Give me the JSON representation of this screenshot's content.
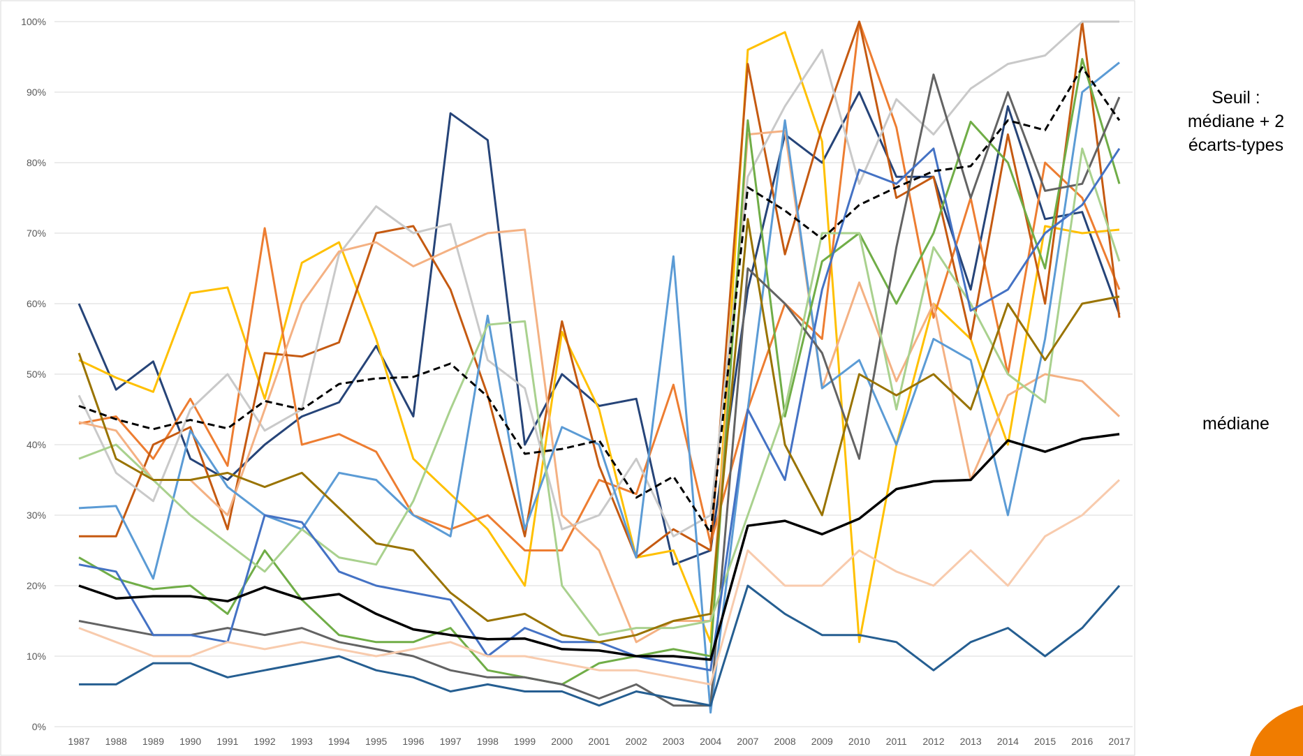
{
  "chart_data": {
    "type": "line",
    "categories": [
      "1987",
      "1988",
      "1989",
      "1990",
      "1991",
      "1992",
      "1993",
      "1994",
      "1995",
      "1996",
      "1997",
      "1998",
      "1999",
      "2000",
      "2001",
      "2002",
      "2003",
      "2004",
      "2007",
      "2008",
      "2009",
      "2010",
      "2011",
      "2012",
      "2013",
      "2014",
      "2015",
      "2016",
      "2017"
    ],
    "ylim": [
      0,
      100
    ],
    "yticks": [
      {
        "value": 0,
        "label": "0%"
      },
      {
        "value": 10,
        "label": "10%"
      },
      {
        "value": 20,
        "label": "20%"
      },
      {
        "value": 30,
        "label": "30%"
      },
      {
        "value": 40,
        "label": "40%"
      },
      {
        "value": 50,
        "label": "50%"
      },
      {
        "value": 60,
        "label": "60%"
      },
      {
        "value": 70,
        "label": "70%"
      },
      {
        "value": 80,
        "label": "80%"
      },
      {
        "value": 90,
        "label": "90%"
      },
      {
        "value": 100,
        "label": "100%"
      }
    ],
    "grid": true,
    "series": [
      {
        "color": "#264478",
        "values": [
          60,
          47.8,
          51.8,
          38,
          35,
          40,
          44,
          46,
          54,
          44,
          87,
          83.2,
          40,
          50,
          45.5,
          46.5,
          23,
          25,
          62,
          84,
          80,
          90,
          78,
          78,
          62,
          88,
          72,
          73,
          58.5
        ]
      },
      {
        "color": "#ffc000",
        "values": [
          52,
          49.5,
          47.5,
          61.5,
          62.3,
          46.5,
          65.8,
          68.7,
          55,
          38,
          33,
          28,
          20,
          56,
          45,
          24,
          25,
          12,
          96,
          98.5,
          83,
          12,
          40,
          60,
          55,
          40,
          71,
          70,
          70.5
        ]
      },
      {
        "color": "#ed7d31",
        "values": [
          43,
          44,
          38,
          46.5,
          37,
          70.7,
          40,
          41.5,
          39,
          30,
          28,
          30,
          25,
          25,
          35,
          33,
          48.5,
          26,
          45,
          60,
          55,
          100,
          85,
          58,
          75,
          50,
          80,
          75,
          62
        ]
      },
      {
        "color": "#c55a11",
        "values": [
          27,
          27,
          40,
          42.5,
          28,
          53,
          52.5,
          54.5,
          70,
          71,
          62,
          47,
          27,
          57.5,
          37,
          24,
          28,
          25,
          94,
          67,
          85,
          100,
          75,
          78,
          55,
          84,
          60,
          100,
          58
        ]
      },
      {
        "color": "#c9c9c9",
        "values": [
          47,
          36,
          32,
          45,
          50,
          42,
          45,
          67,
          73.8,
          70,
          71.3,
          52,
          48,
          28,
          30,
          38,
          27,
          30,
          78,
          88,
          96,
          77,
          89,
          84,
          90.5,
          94,
          95.2,
          100,
          100
        ]
      },
      {
        "color": "#f4b183",
        "values": [
          43.2,
          42,
          35,
          35,
          30,
          45,
          60,
          67.4,
          68.7,
          65.3,
          67.7,
          70,
          70.5,
          30,
          25,
          12,
          15,
          15,
          84,
          84.5,
          48,
          63,
          49,
          60,
          35,
          47,
          50,
          49,
          44
        ]
      },
      {
        "color": "#5b9bd5",
        "values": [
          31,
          31.3,
          21,
          42,
          34,
          30,
          28,
          36,
          35,
          30,
          27,
          58.3,
          28,
          42.5,
          40,
          24,
          66.7,
          2,
          45,
          86,
          48,
          52,
          40,
          55,
          52,
          30,
          55,
          90,
          94.2
        ]
      },
      {
        "color": "#70ad47",
        "values": [
          24,
          21,
          19.5,
          20,
          16,
          25,
          18,
          13,
          12,
          12,
          14,
          8,
          7,
          6,
          9,
          10,
          11,
          10,
          86,
          44,
          66,
          70,
          60,
          70,
          85.8,
          80,
          65,
          94.7,
          77
        ]
      },
      {
        "color": "#636363",
        "values": [
          15,
          14,
          13,
          13,
          14,
          13,
          14,
          12,
          11,
          10,
          8,
          7,
          7,
          6,
          4,
          6,
          3,
          3,
          65,
          60,
          53,
          38,
          68,
          92.5,
          75,
          90,
          76,
          77,
          89.3
        ]
      },
      {
        "color": "#a9d18e",
        "values": [
          38,
          40,
          35,
          30,
          26,
          22,
          28,
          24,
          23,
          32,
          45,
          57,
          57.5,
          20,
          13,
          14,
          14,
          15,
          30,
          45,
          70,
          70,
          45,
          68,
          60,
          50,
          46,
          82,
          66
        ]
      },
      {
        "color": "#4472c4",
        "values": [
          23,
          22,
          13,
          13,
          12,
          30,
          29,
          22,
          20,
          19,
          18,
          10,
          14,
          12,
          12,
          10,
          9,
          8,
          45,
          35,
          62,
          79,
          77,
          82,
          59,
          62,
          70,
          74,
          82
        ]
      },
      {
        "color": "#997300",
        "values": [
          53,
          38,
          35,
          35,
          36,
          34,
          36,
          31,
          26,
          25,
          19,
          15,
          16,
          13,
          12,
          13,
          15,
          16,
          72,
          40,
          30,
          50,
          47,
          50,
          45,
          60,
          52,
          60,
          61
        ]
      },
      {
        "color": "#255e91",
        "values": [
          6,
          6,
          9,
          9,
          7,
          8,
          9,
          10,
          8,
          7,
          5,
          6,
          5,
          5,
          3,
          5,
          4,
          3,
          20,
          16,
          13,
          13,
          12,
          8,
          12,
          14,
          10,
          14,
          20
        ]
      },
      {
        "color": "#f8cbad",
        "values": [
          14,
          12,
          10,
          10,
          12,
          11,
          12,
          11,
          10,
          11,
          12,
          10,
          10,
          9,
          8,
          8,
          7,
          6,
          25,
          20,
          20,
          25,
          22,
          20,
          25,
          20,
          27,
          30,
          35
        ]
      },
      {
        "color": "#000000",
        "dashed": true,
        "values": [
          45.5,
          43.6,
          42.2,
          43.5,
          42.3,
          46.2,
          45,
          48.6,
          49.4,
          49.6,
          51.5,
          46.8,
          38.7,
          39.4,
          40.6,
          32.5,
          35.5,
          27.5,
          76.5,
          73.2,
          69.2,
          74,
          76.5,
          78.8,
          79.5,
          86,
          84.6,
          93.5,
          86
        ]
      },
      {
        "color": "#000000",
        "line_width": 3.5,
        "values": [
          20,
          18.2,
          18.5,
          18.5,
          17.8,
          19.8,
          18.1,
          18.8,
          16,
          13.8,
          13,
          12.4,
          12.5,
          11,
          10.8,
          10,
          10,
          9.5,
          28.5,
          29.2,
          27.3,
          29.5,
          33.7,
          34.8,
          35,
          40.6,
          39,
          40.8,
          41.5
        ]
      }
    ],
    "annotations": [
      {
        "lines": [
          "Seuil :",
          "médiane + 2",
          "écarts-types"
        ]
      },
      {
        "lines": [
          "médiane"
        ]
      }
    ]
  }
}
